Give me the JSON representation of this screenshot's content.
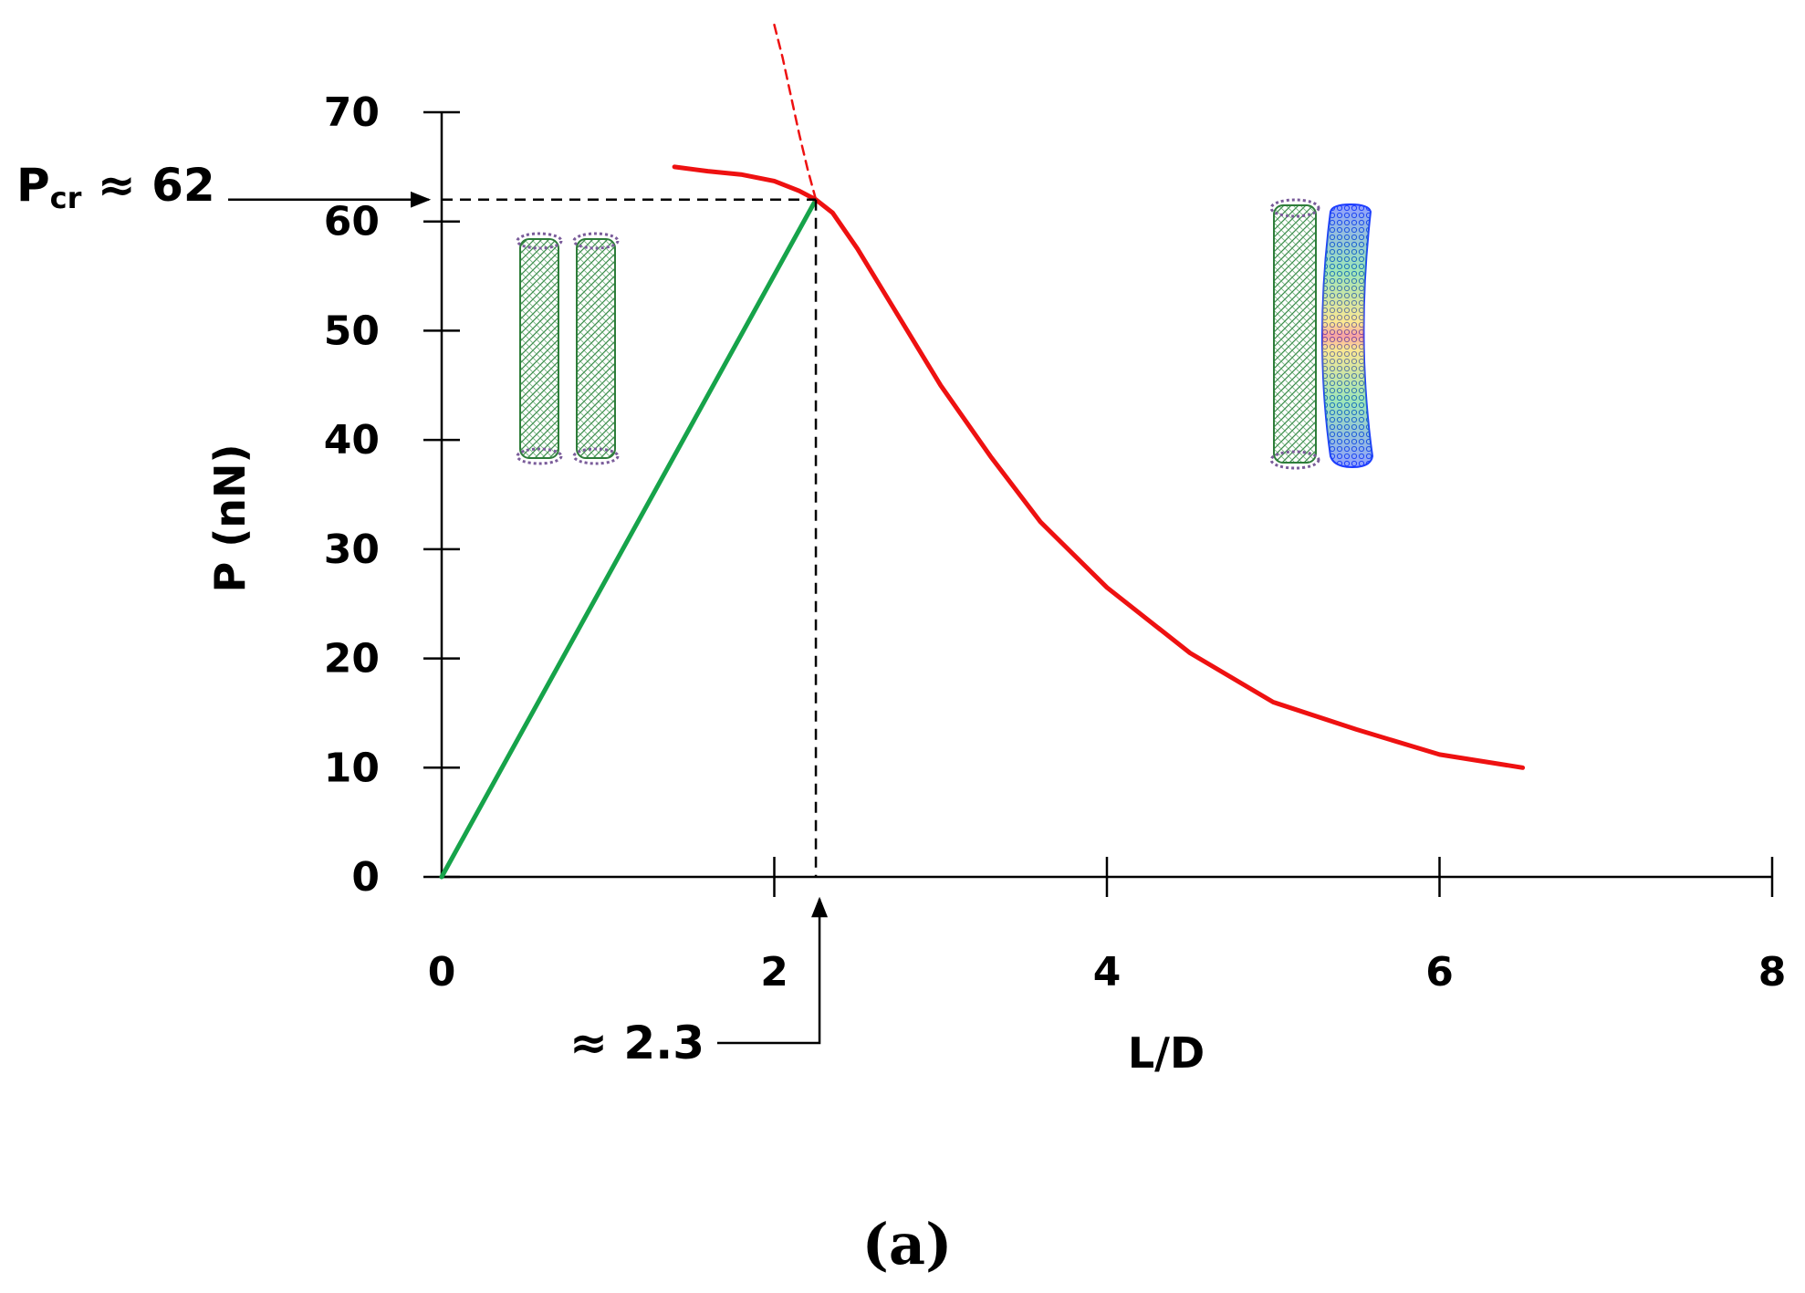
{
  "chart_data": {
    "type": "line",
    "xlabel": "L/D",
    "ylabel": "P (nN)",
    "xlim": [
      0,
      8
    ],
    "ylim": [
      0,
      70
    ],
    "xticks": [
      "0",
      "2",
      "4",
      "6",
      "8"
    ],
    "xtick_values": [
      0,
      2,
      4,
      6,
      8
    ],
    "yticks": [
      "0",
      "10",
      "20",
      "30",
      "40",
      "50",
      "60",
      "70"
    ],
    "ytick_values": [
      0,
      10,
      20,
      30,
      40,
      50,
      60,
      70
    ],
    "grid": false,
    "series": [
      {
        "color": "#16a34a",
        "style": "solid",
        "points": [
          [
            0,
            0
          ],
          [
            2.25,
            62
          ]
        ]
      },
      {
        "color": "#ee1111",
        "style": "solid",
        "points": [
          [
            1.4,
            65
          ],
          [
            1.6,
            64.6
          ],
          [
            1.8,
            64.3
          ],
          [
            2.0,
            63.7
          ],
          [
            2.15,
            62.8
          ],
          [
            2.25,
            62
          ],
          [
            2.35,
            60.8
          ],
          [
            2.5,
            57.5
          ],
          [
            2.7,
            52.5
          ],
          [
            3.0,
            45
          ],
          [
            3.3,
            38.5
          ],
          [
            3.6,
            32.5
          ],
          [
            4.0,
            26.5
          ],
          [
            4.5,
            20.5
          ],
          [
            5.0,
            16
          ],
          [
            5.5,
            13.5
          ],
          [
            6.0,
            11.2
          ],
          [
            6.5,
            10
          ]
        ]
      },
      {
        "color": "#ee1111",
        "style": "dashed",
        "points": [
          [
            2.0,
            78
          ],
          [
            2.05,
            75
          ],
          [
            2.1,
            71.5
          ],
          [
            2.15,
            68
          ],
          [
            2.2,
            64.8
          ],
          [
            2.25,
            62
          ]
        ]
      }
    ],
    "annotations": [
      {
        "text_base": "P",
        "text_sub": "cr",
        "text_tail": " ≈ 62",
        "value": 62
      },
      {
        "text": "≈ 2.3",
        "value": 2.25
      }
    ],
    "panel_label": "(a)",
    "insets": [
      {
        "icon": "nanotube-pair-unbuckled-icon",
        "colors": [
          "#2e8b57",
          "#7a5c9a"
        ]
      },
      {
        "icon": "nanotube-pair-buckled-icon",
        "colors": [
          "#2e8b57",
          "#1e3cff",
          "#22c55e",
          "#facc15",
          "#ef4444"
        ]
      }
    ]
  }
}
